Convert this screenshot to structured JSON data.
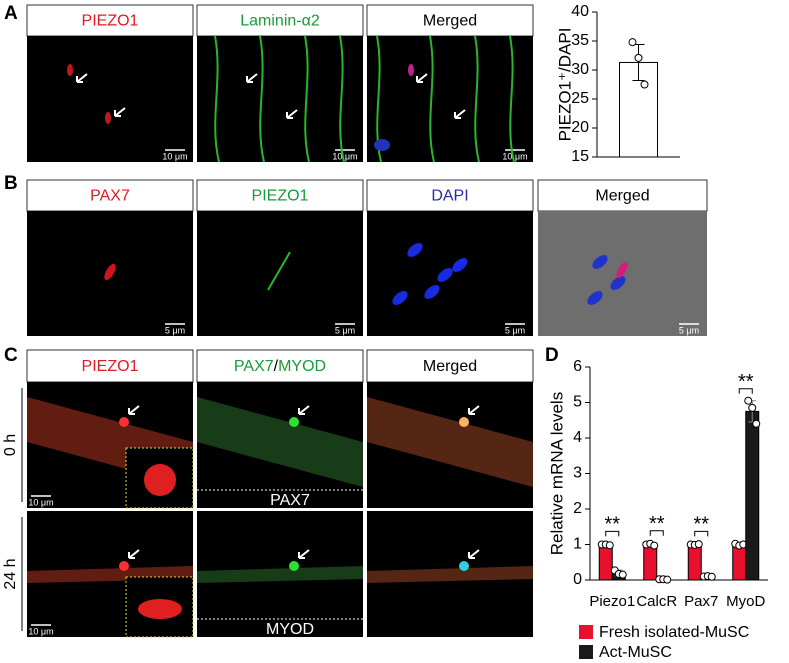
{
  "panels": {
    "A": {
      "label": "A",
      "headers": [
        "PIEZO1",
        "Laminin-α2",
        "Merged"
      ],
      "scale_bars": [
        "10 μm",
        "10 μm",
        "10 μm"
      ]
    },
    "B": {
      "label": "B",
      "headers": [
        "PAX7",
        "PIEZO1",
        "DAPI",
        "Merged"
      ],
      "scale_bars": [
        "5 μm",
        "5 μm",
        "5 μm",
        "5 μm"
      ]
    },
    "C": {
      "label": "C",
      "headers": [
        [
          "PIEZO1"
        ],
        [
          "PAX7",
          "/",
          "MYOD"
        ],
        [
          "Merged"
        ]
      ],
      "row_labels": [
        "0 h",
        "24 h"
      ],
      "insets": [
        "PAX7",
        "MYOD"
      ],
      "scale_bars": [
        "10 μm",
        "10 μm"
      ]
    },
    "D": {
      "label": "D"
    }
  },
  "chart_data": [
    {
      "type": "bar",
      "ylabel": "PIEZO1⁺/DAPI",
      "categories": [
        null
      ],
      "values": [
        31.3
      ],
      "errors": [
        3.1
      ],
      "points": [
        [
          34.8,
          32.1,
          27.5
        ]
      ],
      "color": "#ffffff",
      "ylim": [
        15,
        40
      ],
      "yticks": [
        15,
        20,
        25,
        30,
        35,
        40
      ]
    },
    {
      "type": "bar",
      "ylabel": "Relative mRNA levels",
      "categories": [
        "Piezo1",
        "CalcR",
        "Pax7",
        "MyoD"
      ],
      "series": [
        {
          "name": "Fresh isolated-MuSC",
          "color": "#e8112d",
          "values": [
            1,
            1,
            1,
            1
          ],
          "errors": [
            0.03,
            0.05,
            0.03,
            0.05
          ],
          "points": [
            [
              1,
              1,
              0.98
            ],
            [
              1,
              1.02,
              0.97
            ],
            [
              1,
              0.99,
              1.01
            ],
            [
              1.02,
              0.97,
              1
            ]
          ]
        },
        {
          "name": "Act-MuSC",
          "color": "#1a1a1a",
          "values": [
            0.2,
            0.02,
            0.1,
            4.75
          ],
          "errors": [
            0.08,
            0.02,
            0.02,
            0.3
          ],
          "points": [
            [
              0.27,
              0.17,
              0.15
            ],
            [
              0.02,
              0.02,
              0.01
            ],
            [
              0.1,
              0.11,
              0.09
            ],
            [
              5.05,
              4.85,
              4.4
            ]
          ]
        }
      ],
      "significance": [
        "**",
        "**",
        "**",
        "**"
      ],
      "ylim": [
        0,
        6
      ],
      "yticks": [
        0,
        1,
        2,
        3,
        4,
        5,
        6
      ]
    }
  ]
}
